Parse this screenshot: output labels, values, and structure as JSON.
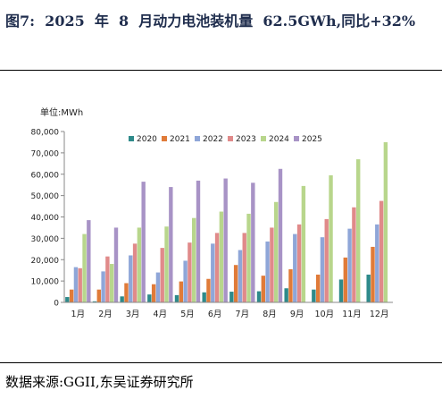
{
  "figure": {
    "title": "图7:  2025  年  8  月动力电池装机量  62.5GWh,同比+32%",
    "source": "数据来源:GGII,东吴证券研究所"
  },
  "chart_data": {
    "type": "bar",
    "unit_label": "单位:MWh",
    "categories": [
      "1月",
      "2月",
      "3月",
      "4月",
      "5月",
      "6月",
      "7月",
      "8月",
      "9月",
      "10月",
      "11月",
      "12月"
    ],
    "ylim": [
      0,
      80000
    ],
    "yticks": [
      0,
      10000,
      20000,
      30000,
      40000,
      50000,
      60000,
      70000,
      80000
    ],
    "ytick_labels": [
      "0",
      "10,000",
      "20,000",
      "30,000",
      "40,000",
      "50,000",
      "60,000",
      "70,000",
      "80,000"
    ],
    "grid": false,
    "legend_position": "top",
    "series": [
      {
        "name": "2020",
        "color": "#2e8a8a",
        "values": [
          2500,
          500,
          2800,
          3700,
          3400,
          4700,
          5000,
          5200,
          6600,
          6000,
          10700,
          13000
        ]
      },
      {
        "name": "2021",
        "color": "#e07b39",
        "values": [
          6000,
          6000,
          9000,
          8500,
          9800,
          11000,
          17500,
          12500,
          15500,
          13000,
          21000,
          26000
        ]
      },
      {
        "name": "2022",
        "color": "#8fa6d8",
        "values": [
          16500,
          14500,
          22000,
          14000,
          19500,
          27500,
          24500,
          28500,
          32000,
          30500,
          34500,
          36500
        ]
      },
      {
        "name": "2023",
        "color": "#e08a8a",
        "values": [
          16000,
          21500,
          27500,
          25500,
          28000,
          32500,
          32500,
          35000,
          36500,
          39000,
          44500,
          47500
        ]
      },
      {
        "name": "2024",
        "color": "#b8d68c",
        "values": [
          32000,
          18000,
          35000,
          35500,
          39500,
          42500,
          41500,
          47000,
          54500,
          59500,
          67000,
          75000
        ]
      },
      {
        "name": "2025",
        "color": "#a893c6",
        "values": [
          38500,
          35000,
          56500,
          54000,
          57000,
          58000,
          56000,
          62500,
          null,
          null,
          null,
          null
        ]
      }
    ]
  }
}
